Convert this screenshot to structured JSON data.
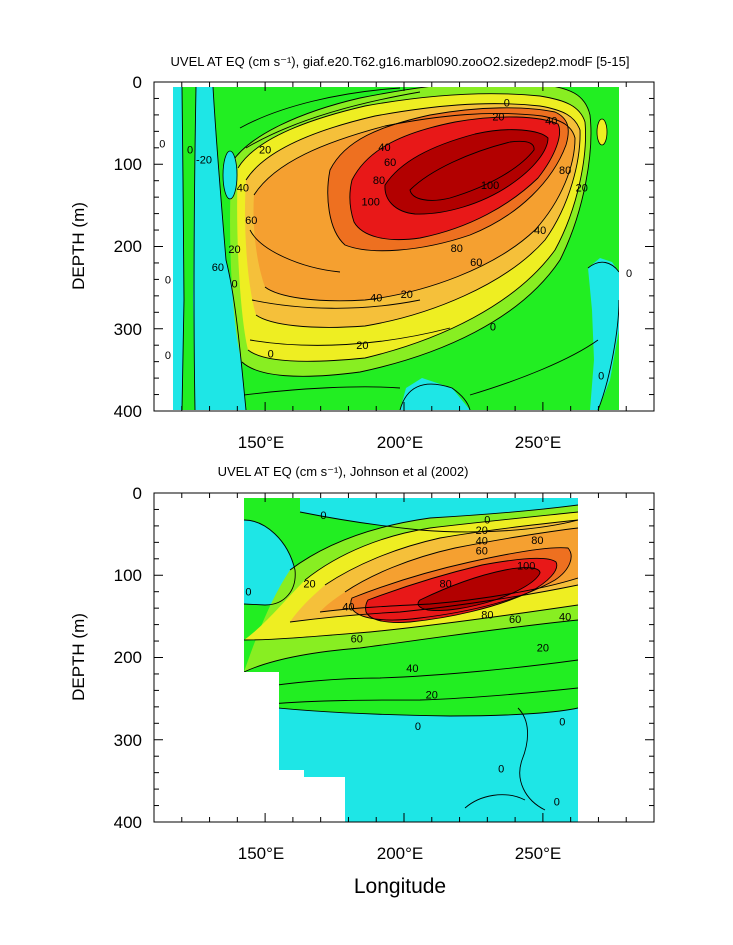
{
  "colors": {
    "cyan": "#1ee6e6",
    "green": "#22ee22",
    "lime": "#88ee22",
    "yellow": "#eeee22",
    "lightorange": "#f5c03a",
    "orange": "#f5a030",
    "darkorange": "#ee7020",
    "red": "#e81818",
    "darkred": "#b20000"
  },
  "xlabel": "Longitude",
  "ylabel": "DEPTH (m)",
  "chart_data": [
    {
      "type": "contour",
      "title": "UVEL AT EQ (cm s⁻¹), giaf.e20.T62.g16.marbl090.zooO2.sizedep2.modF [5-15]",
      "xlabel": "",
      "ylabel": "DEPTH (m)",
      "x_ticks": [
        "150°E",
        "200°E",
        "250°E"
      ],
      "x_tick_values": [
        150,
        200,
        250
      ],
      "y_ticks": [
        "0",
        "100",
        "200",
        "300",
        "400"
      ],
      "y_tick_values": [
        0,
        100,
        200,
        300,
        400
      ],
      "xlim": [
        110,
        290
      ],
      "ylim": [
        0,
        400
      ],
      "data_extent_lon": [
        117,
        279
      ],
      "core_max": 100,
      "contour_labels": [
        {
          "text": "0",
          "lon": 237,
          "depth": 25
        },
        {
          "text": "20",
          "lon": 234,
          "depth": 42
        },
        {
          "text": "40",
          "lon": 253,
          "depth": 47
        },
        {
          "text": "20",
          "lon": 150,
          "depth": 82
        },
        {
          "text": "40",
          "lon": 193,
          "depth": 79
        },
        {
          "text": "60",
          "lon": 195,
          "depth": 97
        },
        {
          "text": "80",
          "lon": 191,
          "depth": 119
        },
        {
          "text": "100",
          "lon": 231,
          "depth": 125
        },
        {
          "text": "100",
          "lon": 188,
          "depth": 145
        },
        {
          "text": "80",
          "lon": 258,
          "depth": 107
        },
        {
          "text": "40",
          "lon": 142,
          "depth": 128
        },
        {
          "text": "60",
          "lon": 145,
          "depth": 168
        },
        {
          "text": "20",
          "lon": 139,
          "depth": 203
        },
        {
          "text": "60",
          "lon": 133,
          "depth": 225
        },
        {
          "text": "80",
          "lon": 219,
          "depth": 202
        },
        {
          "text": "60",
          "lon": 226,
          "depth": 219
        },
        {
          "text": "40",
          "lon": 249,
          "depth": 180
        },
        {
          "text": "40",
          "lon": 190,
          "depth": 262
        },
        {
          "text": "20",
          "lon": 201,
          "depth": 258
        },
        {
          "text": "20",
          "lon": 185,
          "depth": 320
        },
        {
          "text": "0",
          "lon": 232,
          "depth": 297
        },
        {
          "text": "-20",
          "lon": 128,
          "depth": 94
        },
        {
          "text": "0",
          "lon": 123,
          "depth": 82
        },
        {
          "text": "0",
          "lon": 113,
          "depth": 75
        },
        {
          "text": "0",
          "lon": 139,
          "depth": 245
        },
        {
          "text": "0",
          "lon": 115,
          "depth": 240
        },
        {
          "text": "0",
          "lon": 115,
          "depth": 332
        },
        {
          "text": "0",
          "lon": 152,
          "depth": 330
        },
        {
          "text": "20",
          "lon": 264,
          "depth": 128
        },
        {
          "text": "0",
          "lon": 281,
          "depth": 232
        },
        {
          "text": "0",
          "lon": 271,
          "depth": 357
        }
      ]
    },
    {
      "type": "contour",
      "title": "UVEL AT EQ (cm s⁻¹), Johnson et al (2002)",
      "xlabel": "Longitude",
      "ylabel": "DEPTH (m)",
      "x_ticks": [
        "150°E",
        "200°E",
        "250°E"
      ],
      "x_tick_values": [
        150,
        200,
        250
      ],
      "y_ticks": [
        "0",
        "100",
        "200",
        "300",
        "400"
      ],
      "y_tick_values": [
        0,
        100,
        200,
        300,
        400
      ],
      "xlim": [
        110,
        290
      ],
      "ylim": [
        0,
        400
      ],
      "data_extent_lon": [
        143,
        265
      ],
      "core_max": 100,
      "contour_labels": [
        {
          "text": "0",
          "lon": 230,
          "depth": 32
        },
        {
          "text": "20",
          "lon": 228,
          "depth": 45
        },
        {
          "text": "40",
          "lon": 228,
          "depth": 58
        },
        {
          "text": "60",
          "lon": 228,
          "depth": 70
        },
        {
          "text": "80",
          "lon": 248,
          "depth": 57
        },
        {
          "text": "0",
          "lon": 171,
          "depth": 27
        },
        {
          "text": "20",
          "lon": 166,
          "depth": 110
        },
        {
          "text": "0",
          "lon": 144,
          "depth": 120
        },
        {
          "text": "40",
          "lon": 180,
          "depth": 138
        },
        {
          "text": "60",
          "lon": 183,
          "depth": 177
        },
        {
          "text": "80",
          "lon": 215,
          "depth": 110
        },
        {
          "text": "100",
          "lon": 244,
          "depth": 88
        },
        {
          "text": "80",
          "lon": 230,
          "depth": 148
        },
        {
          "text": "60",
          "lon": 240,
          "depth": 153
        },
        {
          "text": "40",
          "lon": 258,
          "depth": 150
        },
        {
          "text": "20",
          "lon": 250,
          "depth": 188
        },
        {
          "text": "40",
          "lon": 203,
          "depth": 213
        },
        {
          "text": "20",
          "lon": 210,
          "depth": 245
        },
        {
          "text": "0",
          "lon": 205,
          "depth": 283
        },
        {
          "text": "0",
          "lon": 257,
          "depth": 278
        },
        {
          "text": "0",
          "lon": 235,
          "depth": 335
        },
        {
          "text": "0",
          "lon": 255,
          "depth": 375
        }
      ]
    }
  ]
}
